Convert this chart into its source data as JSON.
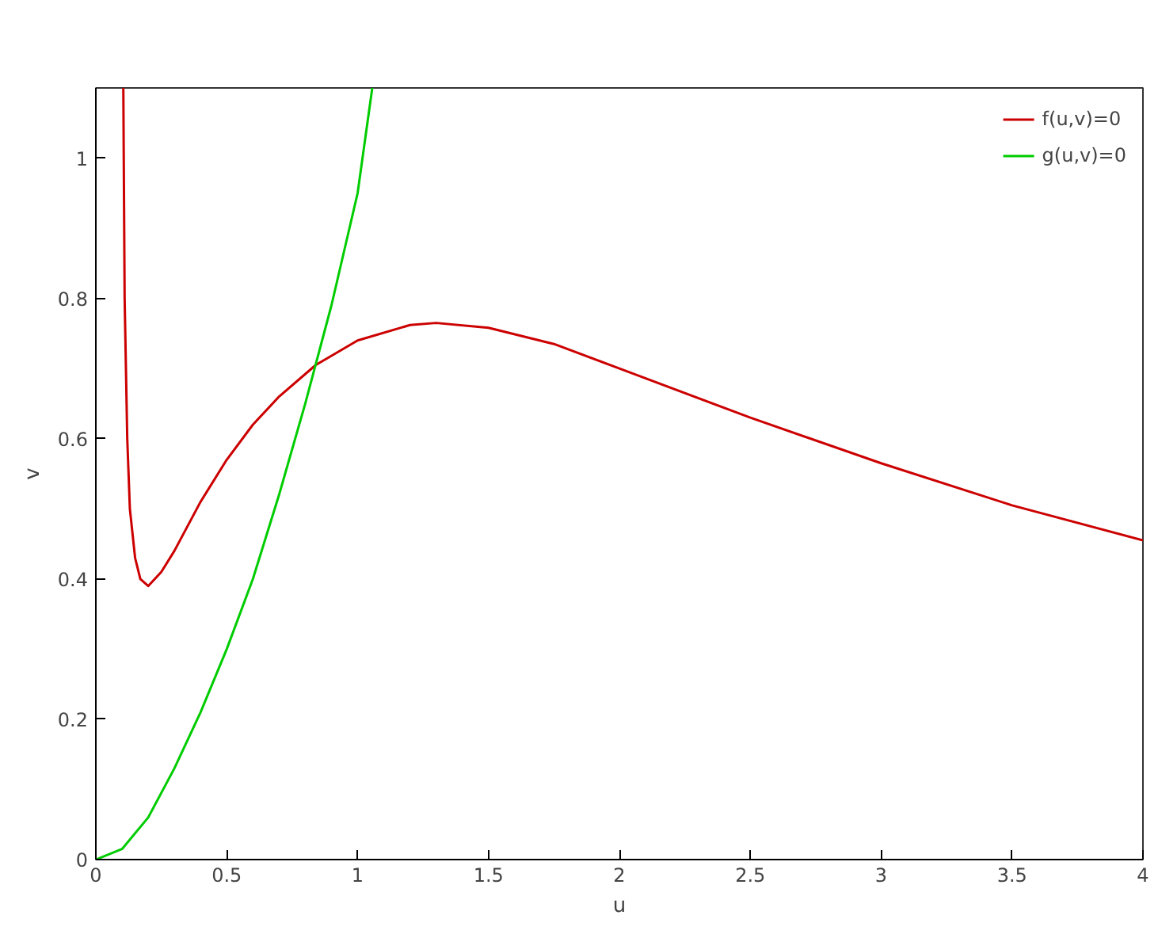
{
  "chart_data": {
    "type": "line",
    "xlabel": "u",
    "ylabel": "v",
    "xlim": [
      0,
      4
    ],
    "ylim": [
      0,
      1.1
    ],
    "xticks": [
      0,
      0.5,
      1,
      1.5,
      2,
      2.5,
      3,
      3.5,
      4
    ],
    "yticks": [
      0,
      0.2,
      0.4,
      0.6,
      0.8,
      1
    ],
    "grid": false,
    "legend": "top right",
    "marker": "none",
    "line_style": "solid",
    "series": [
      {
        "name": "f(u,v)=0",
        "color": "#cc0000",
        "x": [
          0.105,
          0.11,
          0.115,
          0.12,
          0.13,
          0.15,
          0.17,
          0.2,
          0.25,
          0.3,
          0.4,
          0.5,
          0.6,
          0.7,
          0.84,
          1.0,
          1.2,
          1.3,
          1.5,
          1.75,
          2.0,
          2.5,
          3.0,
          3.5,
          4.0
        ],
        "values": [
          1.1,
          0.8,
          0.7,
          0.6,
          0.5,
          0.43,
          0.4,
          0.39,
          0.41,
          0.44,
          0.51,
          0.57,
          0.62,
          0.66,
          0.705,
          0.74,
          0.762,
          0.765,
          0.758,
          0.735,
          0.7,
          0.63,
          0.565,
          0.505,
          0.455
        ]
      },
      {
        "name": "g(u,v)=0",
        "color": "#00cc00",
        "x": [
          0,
          0.1,
          0.2,
          0.3,
          0.4,
          0.5,
          0.6,
          0.7,
          0.8,
          0.9,
          1.0,
          1.056
        ],
        "values": [
          0,
          0.015,
          0.06,
          0.13,
          0.21,
          0.3,
          0.4,
          0.52,
          0.65,
          0.79,
          0.95,
          1.1
        ]
      }
    ]
  }
}
